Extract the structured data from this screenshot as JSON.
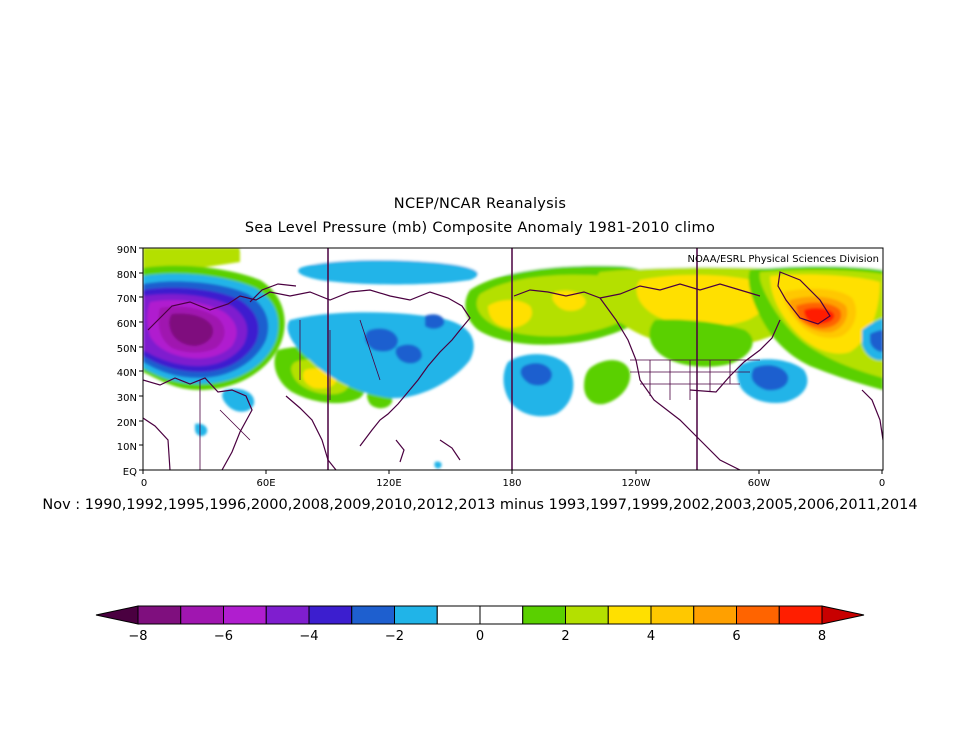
{
  "title_line1": "NCEP/NCAR Reanalysis",
  "title_line2": "Sea Level Pressure (mb) Composite Anomaly 1981-2010 climo",
  "credit": "NOAA/ESRL Physical Sciences Division",
  "subtitle": "Nov : 1990,1992,1995,1996,2000,2008,2009,2010,2012,2013  minus  1993,1997,1999,2002,2003,2005,2006,2011,2014",
  "lat_labels": [
    "90N",
    "80N",
    "70N",
    "60N",
    "50N",
    "40N",
    "30N",
    "20N",
    "10N",
    "EQ"
  ],
  "lon_labels": [
    "0",
    "60E",
    "120E",
    "180",
    "120W",
    "60W",
    "0"
  ],
  "colorbar": {
    "labels": [
      "-8",
      "-6",
      "-4",
      "-2",
      "0",
      "2",
      "4",
      "6",
      "8"
    ],
    "colors": [
      "#7f0f7e",
      "#a016b0",
      "#b01ecf",
      "#7f1ecf",
      "#3c1ecf",
      "#1e5fcf",
      "#20b4e8",
      "#ffffff",
      "#ffffff",
      "#5ad000",
      "#b4e000",
      "#ffe000",
      "#ffc800",
      "#ffa000",
      "#ff6400",
      "#ff1e00"
    ],
    "under_color": "#4a0040",
    "over_color": "#c80000"
  }
}
